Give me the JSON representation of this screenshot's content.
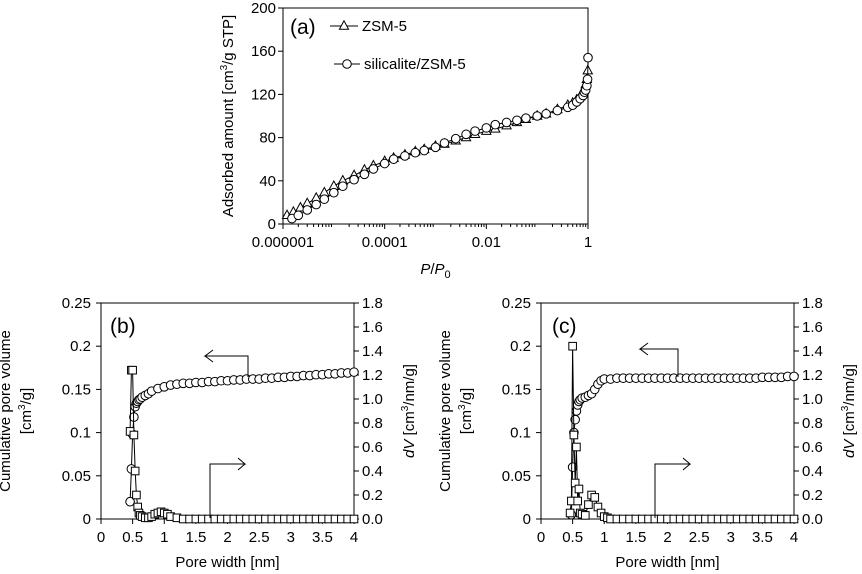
{
  "chart_data": [
    {
      "panel": "(a)",
      "type": "scatter",
      "x_scale": "log",
      "xlabel": "P/P0",
      "xlabel_rendered": {
        "italic": "P",
        "slash": "/",
        "italic2": "P",
        "sub": "0"
      },
      "ylabel": "Adsorbed amount [cm3/g STP]",
      "ylabel_rendered": {
        "main": "Adsorbed amount [cm",
        "sup": "3",
        "tail": "/g STP]"
      },
      "xlim": [
        1e-06,
        1
      ],
      "ylim": [
        0,
        200
      ],
      "x_ticks": [
        {
          "value": 1e-06,
          "label": "0.000001"
        },
        {
          "value": 0.0001,
          "label": "0.0001"
        },
        {
          "value": 0.01,
          "label": "0.01"
        },
        {
          "value": 1,
          "label": "1"
        }
      ],
      "y_ticks": [
        0,
        40,
        80,
        120,
        160,
        200
      ],
      "legend_position": "top-left",
      "series": [
        {
          "name": "ZSM-5",
          "marker": "triangle",
          "x": [
            1.2e-06,
            1.6e-06,
            2.2e-06,
            3e-06,
            4.5e-06,
            6.5e-06,
            1e-05,
            1.5e-05,
            2.5e-05,
            4e-05,
            6e-05,
            0.0001,
            0.00015,
            0.00025,
            0.0004,
            0.0006,
            0.001,
            0.0015,
            0.0025,
            0.004,
            0.006,
            0.01,
            0.015,
            0.025,
            0.04,
            0.06,
            0.1,
            0.15,
            0.25,
            0.4,
            0.5,
            0.6,
            0.7,
            0.8,
            0.85,
            0.9,
            0.95,
            0.99
          ],
          "y": [
            8,
            11,
            15,
            19,
            24,
            29,
            35,
            40,
            45,
            50,
            54,
            58,
            61,
            64,
            67,
            69,
            72,
            74,
            77,
            80,
            83,
            86,
            88,
            91,
            94,
            97,
            100,
            102,
            106,
            110,
            112,
            115,
            118,
            122,
            125,
            129,
            134,
            142
          ]
        },
        {
          "name": "silicalite/ZSM-5",
          "marker": "circle",
          "x": [
            1.5e-06,
            2e-06,
            3e-06,
            4.5e-06,
            6.5e-06,
            1e-05,
            1.5e-05,
            2.5e-05,
            4e-05,
            6e-05,
            0.0001,
            0.00015,
            0.00025,
            0.0004,
            0.0006,
            0.001,
            0.0015,
            0.0025,
            0.004,
            0.006,
            0.01,
            0.015,
            0.025,
            0.04,
            0.06,
            0.1,
            0.15,
            0.25,
            0.4,
            0.5,
            0.6,
            0.7,
            0.8,
            0.85,
            0.9,
            0.95,
            0.98,
            1.0
          ],
          "y": [
            5,
            8,
            13,
            18,
            23,
            29,
            35,
            41,
            46,
            51,
            56,
            60,
            63,
            66,
            68,
            71,
            75,
            79,
            83,
            86,
            89,
            92,
            94,
            96,
            98,
            100,
            102,
            105,
            108,
            110,
            113,
            116,
            119,
            122,
            124,
            128,
            134,
            154
          ]
        }
      ]
    },
    {
      "panel": "(b)",
      "type": "scatter",
      "xlabel": "Pore width [nm]",
      "ylabel_left": "Cumulative pore volume [cm3/g]",
      "ylabel_left_rendered": {
        "line1": "Cumulative pore volume",
        "main": "[cm",
        "sup": "3",
        "tail": "/g]"
      },
      "ylabel_right": "dV [cm3/nm/g]",
      "ylabel_right_rendered": {
        "italic": "d",
        "italic2": "V",
        "main": " [cm",
        "sup": "3",
        "tail": "/nm/g]"
      },
      "xlim": [
        0,
        4
      ],
      "ylim_left": [
        0,
        0.25
      ],
      "ylim_right": [
        0,
        1.8
      ],
      "x_ticks": [
        "0",
        "0.5",
        "1",
        "1.5",
        "2",
        "2.5",
        "3",
        "3.5",
        "4"
      ],
      "y_ticks_left": [
        "0",
        "0.05",
        "0.1",
        "0.15",
        "0.2",
        "0.25"
      ],
      "y_ticks_right": [
        "0.0",
        "0.2",
        "0.4",
        "0.6",
        "0.8",
        "1.0",
        "1.2",
        "1.4",
        "1.6",
        "1.8"
      ],
      "series": [
        {
          "name": "Cumulative pore volume",
          "marker": "circle",
          "axis": "left",
          "x": [
            0.46,
            0.48,
            0.5,
            0.52,
            0.54,
            0.56,
            0.58,
            0.6,
            0.62,
            0.65,
            0.7,
            0.75,
            0.8,
            0.9,
            1.0,
            1.1,
            1.2,
            1.3,
            1.4,
            1.5,
            1.6,
            1.7,
            1.8,
            1.9,
            2.0,
            2.1,
            2.2,
            2.3,
            2.4,
            2.5,
            2.6,
            2.7,
            2.8,
            2.9,
            3.0,
            3.1,
            3.2,
            3.3,
            3.4,
            3.5,
            3.6,
            3.7,
            3.8,
            3.9,
            4.0
          ],
          "y": [
            0.02,
            0.058,
            0.098,
            0.118,
            0.13,
            0.134,
            0.136,
            0.138,
            0.139,
            0.141,
            0.143,
            0.145,
            0.148,
            0.151,
            0.153,
            0.155,
            0.156,
            0.157,
            0.157,
            0.158,
            0.158,
            0.159,
            0.159,
            0.16,
            0.16,
            0.161,
            0.161,
            0.162,
            0.162,
            0.162,
            0.163,
            0.163,
            0.164,
            0.164,
            0.165,
            0.165,
            0.166,
            0.166,
            0.167,
            0.167,
            0.168,
            0.168,
            0.169,
            0.169,
            0.17
          ]
        },
        {
          "name": "dV",
          "marker": "square",
          "axis": "right",
          "x": [
            0.46,
            0.48,
            0.5,
            0.52,
            0.54,
            0.56,
            0.58,
            0.6,
            0.62,
            0.65,
            0.7,
            0.75,
            0.8,
            0.85,
            0.9,
            0.95,
            1.0,
            1.05,
            1.1,
            1.2,
            1.3,
            1.4,
            1.5,
            1.6,
            1.7,
            1.8,
            1.9,
            2.0,
            2.1,
            2.2,
            2.3,
            2.4,
            2.5,
            2.6,
            2.7,
            2.8,
            2.9,
            3.0,
            3.1,
            3.2,
            3.3,
            3.4,
            3.5,
            3.6,
            3.7,
            3.8,
            3.9,
            4.0
          ],
          "y": [
            0.73,
            1.24,
            1.24,
            0.7,
            0.4,
            0.2,
            0.1,
            0.05,
            0.03,
            0.02,
            0.01,
            0.01,
            0.02,
            0.04,
            0.05,
            0.06,
            0.05,
            0.04,
            0.02,
            0.01,
            0,
            0,
            0,
            0,
            0,
            0,
            0,
            0,
            0,
            0,
            0,
            0,
            0,
            0,
            0,
            0,
            0,
            0,
            0,
            0,
            0,
            0,
            0,
            0,
            0,
            0,
            0,
            0
          ]
        }
      ]
    },
    {
      "panel": "(c)",
      "type": "scatter",
      "xlabel": "Pore width [nm]",
      "ylabel_left": "Cumulative pore volume [cm3/g]",
      "ylabel_left_rendered": {
        "line1": "Cumulative pore volume",
        "main": "[cm",
        "sup": "3",
        "tail": "/g]"
      },
      "ylabel_right": "dV [cm3/nm/g]",
      "ylabel_right_rendered": {
        "italic": "d",
        "italic2": "V",
        "main": " [cm",
        "sup": "3",
        "tail": "/nm/g]"
      },
      "xlim": [
        0,
        4
      ],
      "ylim_left": [
        0,
        0.25
      ],
      "ylim_right": [
        0,
        1.8
      ],
      "x_ticks": [
        "0",
        "0.5",
        "1",
        "1.5",
        "2",
        "2.5",
        "3",
        "3.5",
        "4"
      ],
      "y_ticks_left": [
        "0",
        "0.05",
        "0.1",
        "0.15",
        "0.2",
        "0.25"
      ],
      "y_ticks_right": [
        "0.0",
        "0.2",
        "0.4",
        "0.6",
        "0.8",
        "1.0",
        "1.2",
        "1.4",
        "1.6",
        "1.8"
      ],
      "series": [
        {
          "name": "Cumulative pore volume",
          "marker": "circle",
          "axis": "left",
          "x": [
            0.48,
            0.5,
            0.52,
            0.54,
            0.56,
            0.58,
            0.6,
            0.62,
            0.65,
            0.7,
            0.75,
            0.8,
            0.85,
            0.9,
            0.95,
            1.0,
            1.1,
            1.2,
            1.3,
            1.4,
            1.5,
            1.6,
            1.7,
            1.8,
            1.9,
            2.0,
            2.1,
            2.2,
            2.3,
            2.4,
            2.5,
            2.6,
            2.7,
            2.8,
            2.9,
            3.0,
            3.1,
            3.2,
            3.3,
            3.4,
            3.5,
            3.6,
            3.7,
            3.8,
            3.9,
            4.0
          ],
          "y": [
            0.005,
            0.06,
            0.1,
            0.115,
            0.125,
            0.132,
            0.136,
            0.138,
            0.14,
            0.141,
            0.143,
            0.145,
            0.15,
            0.156,
            0.16,
            0.162,
            0.162,
            0.163,
            0.163,
            0.163,
            0.163,
            0.163,
            0.163,
            0.163,
            0.163,
            0.163,
            0.163,
            0.163,
            0.163,
            0.163,
            0.163,
            0.163,
            0.163,
            0.163,
            0.163,
            0.163,
            0.163,
            0.163,
            0.163,
            0.163,
            0.164,
            0.164,
            0.164,
            0.164,
            0.165,
            0.165
          ]
        },
        {
          "name": "dV",
          "marker": "square",
          "axis": "right",
          "x": [
            0.46,
            0.48,
            0.5,
            0.52,
            0.54,
            0.56,
            0.58,
            0.6,
            0.62,
            0.65,
            0.7,
            0.75,
            0.8,
            0.85,
            0.9,
            0.95,
            1.0,
            1.05,
            1.1,
            1.2,
            1.3,
            1.4,
            1.5,
            1.6,
            1.7,
            1.8,
            1.9,
            2.0,
            2.1,
            2.2,
            2.3,
            2.4,
            2.5,
            2.6,
            2.7,
            2.8,
            2.9,
            3.0,
            3.1,
            3.2,
            3.3,
            3.4,
            3.5,
            3.6,
            3.7,
            3.8,
            3.9,
            4.0
          ],
          "y": [
            0.05,
            0.15,
            1.44,
            0.7,
            0.3,
            0.6,
            0.15,
            0.25,
            0.05,
            0.04,
            0.03,
            0.12,
            0.2,
            0.18,
            0.1,
            0.05,
            0.02,
            0.01,
            0,
            0,
            0,
            0,
            0,
            0,
            0,
            0,
            0,
            0,
            0,
            0,
            0,
            0,
            0,
            0,
            0,
            0,
            0,
            0,
            0,
            0,
            0,
            0,
            0,
            0,
            0,
            0,
            0,
            0
          ]
        }
      ]
    }
  ]
}
